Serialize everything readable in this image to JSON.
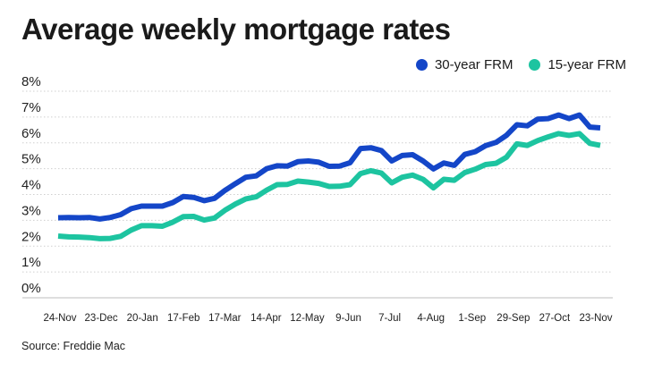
{
  "title": "Average weekly mortgage rates",
  "source": "Source: Freddie Mac",
  "colors": {
    "series_30": "#1446c8",
    "series_15": "#1dc4a0",
    "grid": "#cfcfcf"
  },
  "chart_data": {
    "type": "line",
    "title": "Average weekly mortgage rates",
    "xlabel": "",
    "ylabel": "",
    "ylim": [
      0,
      8
    ],
    "y_ticks": [
      "8%",
      "7%",
      "6%",
      "5%",
      "4%",
      "3%",
      "2%",
      "1%",
      "0%"
    ],
    "y_tick_values": [
      8,
      7,
      6,
      5,
      4,
      3,
      2,
      1,
      0
    ],
    "x_ticks": [
      "24-Nov",
      "23-Dec",
      "20-Jan",
      "17-Feb",
      "17-Mar",
      "14-Apr",
      "12-May",
      "9-Jun",
      "7-Jul",
      "4-Aug",
      "1-Sep",
      "29-Sep",
      "27-Oct",
      "23-Nov"
    ],
    "grid": true,
    "legend": "top-right",
    "series": [
      {
        "name": "30-year FRM",
        "values": [
          3.1,
          3.11,
          3.1,
          3.11,
          3.05,
          3.11,
          3.22,
          3.45,
          3.55,
          3.55,
          3.55,
          3.69,
          3.92,
          3.89,
          3.76,
          3.85,
          4.16,
          4.42,
          4.67,
          4.72,
          5.0,
          5.11,
          5.1,
          5.27,
          5.3,
          5.25,
          5.09,
          5.1,
          5.23,
          5.78,
          5.81,
          5.7,
          5.3,
          5.51,
          5.54,
          5.3,
          4.99,
          5.22,
          5.13,
          5.55,
          5.66,
          5.89,
          6.02,
          6.29,
          6.7,
          6.66,
          6.92,
          6.94,
          7.08,
          6.94,
          7.08,
          6.61,
          6.58
        ]
      },
      {
        "name": "15-year FRM",
        "values": [
          2.39,
          2.36,
          2.35,
          2.33,
          2.29,
          2.3,
          2.38,
          2.62,
          2.79,
          2.79,
          2.77,
          2.93,
          3.14,
          3.15,
          3.01,
          3.09,
          3.39,
          3.63,
          3.83,
          3.91,
          4.17,
          4.38,
          4.39,
          4.52,
          4.48,
          4.43,
          4.31,
          4.32,
          4.38,
          4.81,
          4.92,
          4.83,
          4.45,
          4.67,
          4.75,
          4.59,
          4.26,
          4.59,
          4.55,
          4.85,
          4.98,
          5.16,
          5.21,
          5.44,
          5.96,
          5.9,
          6.09,
          6.23,
          6.36,
          6.29,
          6.36,
          5.98,
          5.9
        ]
      }
    ]
  }
}
